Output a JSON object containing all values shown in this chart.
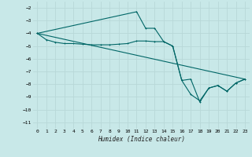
{
  "xlabel": "Humidex (Indice chaleur)",
  "ylabel": "",
  "bg_color": "#c8e8e8",
  "grid_color": "#b8d8d8",
  "line_color": "#006666",
  "xlim": [
    -0.5,
    23.5
  ],
  "ylim": [
    -11.5,
    -1.5
  ],
  "yticks": [
    -2,
    -3,
    -4,
    -5,
    -6,
    -7,
    -8,
    -9,
    -10,
    -11
  ],
  "xticks": [
    0,
    1,
    2,
    3,
    4,
    5,
    6,
    7,
    8,
    9,
    10,
    11,
    12,
    13,
    14,
    15,
    16,
    17,
    18,
    19,
    20,
    21,
    22,
    23
  ],
  "line1_x": [
    0,
    1,
    2,
    3,
    4,
    5,
    6,
    7,
    8,
    9,
    10,
    11,
    12,
    13,
    14,
    15,
    16,
    17,
    18,
    19,
    20,
    21,
    22,
    23
  ],
  "line1_y": [
    -4.0,
    -4.5,
    -4.7,
    -4.8,
    -4.8,
    -4.85,
    -4.9,
    -4.9,
    -4.9,
    -4.85,
    -4.8,
    -4.6,
    -4.6,
    -4.65,
    -4.65,
    -5.0,
    -7.7,
    -8.8,
    -9.3,
    -8.3,
    -8.1,
    -8.55,
    -7.9,
    -7.6
  ],
  "line2_x": [
    0,
    11,
    12,
    13,
    14,
    15,
    16,
    17,
    18,
    19,
    20,
    21,
    22,
    23
  ],
  "line2_y": [
    -4.0,
    -2.3,
    -3.6,
    -3.6,
    -4.65,
    -5.0,
    -7.7,
    -7.6,
    -9.4,
    -8.3,
    -8.1,
    -8.55,
    -7.9,
    -7.6
  ],
  "line3_x": [
    0,
    23
  ],
  "line3_y": [
    -4.0,
    -7.6
  ]
}
